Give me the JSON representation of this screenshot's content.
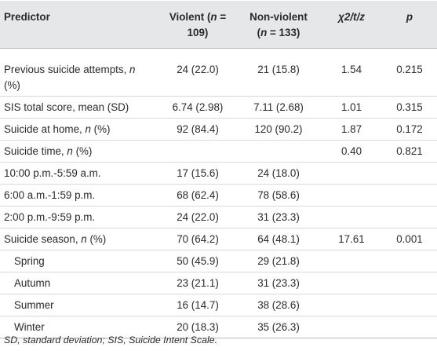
{
  "header": {
    "predictor": "Predictor",
    "violent_line1": "Violent (",
    "violent_n": "n",
    "violent_line1_end": " =",
    "violent_line2": "109)",
    "nonviolent_line1": "Non-violent",
    "nonviolent_line2_open": "(",
    "nonviolent_n": "n",
    "nonviolent_line2_end": " = 133)",
    "stat": "χ2/t/z",
    "p": "p"
  },
  "rows": [
    {
      "label_a": "Previous suicide attempts, ",
      "label_n": "n",
      "label_b": "",
      "label_line2": "(%)",
      "violent": "24 (22.0)",
      "nonviolent": "21 (15.8)",
      "stat": "1.54",
      "p": "0.215"
    },
    {
      "label_a": "SIS total score, mean (SD)",
      "label_n": "",
      "label_b": "",
      "violent": "6.74 (2.98)",
      "nonviolent": "7.11 (2.68)",
      "stat": "1.01",
      "p": "0.315"
    },
    {
      "label_a": "Suicide at home, ",
      "label_n": "n",
      "label_b": " (%)",
      "violent": "92 (84.4)",
      "nonviolent": "120 (90.2)",
      "stat": "1.87",
      "p": "0.172"
    },
    {
      "label_a": "Suicide time, ",
      "label_n": "n",
      "label_b": " (%)",
      "violent": "",
      "nonviolent": "",
      "stat": "0.40",
      "p": "0.821"
    },
    {
      "label_a": "10:00 p.m.-5:59 a.m.",
      "label_n": "",
      "label_b": "",
      "violent": "17 (15.6)",
      "nonviolent": "24 (18.0)",
      "stat": "",
      "p": ""
    },
    {
      "label_a": "6:00 a.m.-1:59 p.m.",
      "label_n": "",
      "label_b": "",
      "violent": "68 (62.4)",
      "nonviolent": "78 (58.6)",
      "stat": "",
      "p": ""
    },
    {
      "label_a": "2:00 p.m.-9:59 p.m.",
      "label_n": "",
      "label_b": "",
      "violent": "24 (22.0)",
      "nonviolent": "31 (23.3)",
      "stat": "",
      "p": ""
    },
    {
      "label_a": "Suicide season, ",
      "label_n": "n",
      "label_b": " (%)",
      "violent": "70 (64.2)",
      "nonviolent": "64 (48.1)",
      "stat": "17.61",
      "p": "0.001"
    },
    {
      "label_a": "Spring",
      "label_n": "",
      "label_b": "",
      "violent": "50 (45.9)",
      "nonviolent": "29 (21.8)",
      "stat": "",
      "p": ""
    },
    {
      "label_a": "Autumn",
      "label_n": "",
      "label_b": "",
      "violent": "23 (21.1)",
      "nonviolent": "31 (23.3)",
      "stat": "",
      "p": ""
    },
    {
      "label_a": "Summer",
      "label_n": "",
      "label_b": "",
      "violent": "16 (14.7)",
      "nonviolent": "38 (28.6)",
      "stat": "",
      "p": ""
    },
    {
      "label_a": "Winter",
      "label_n": "",
      "label_b": "",
      "violent": "20 (18.3)",
      "nonviolent": "35 (26.3)",
      "stat": "",
      "p": ""
    }
  ],
  "footnote": "SD, standard deviation; SIS, Suicide Intent Scale."
}
